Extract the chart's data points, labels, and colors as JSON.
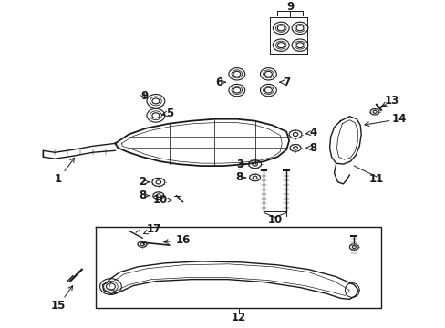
{
  "bg_color": "#ffffff",
  "line_color": "#1a1a1a",
  "fig_width": 4.89,
  "fig_height": 3.6,
  "dpi": 100,
  "label_fontsize": 8.5,
  "label_fontsize_sm": 7.5
}
